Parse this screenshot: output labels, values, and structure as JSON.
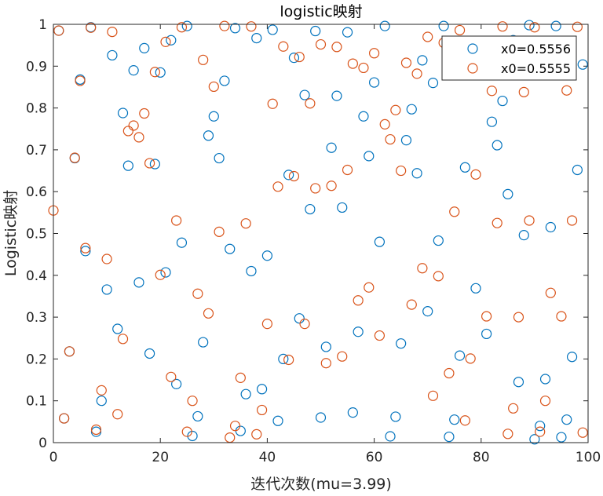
{
  "chart_data": {
    "type": "scatter",
    "title": "logistic映射",
    "xlabel": "迭代次数(mu=3.99)",
    "ylabel": "Logistic映射",
    "xlim": [
      0,
      100
    ],
    "ylim": [
      0,
      1
    ],
    "xticks": [
      "0",
      "20",
      "40",
      "60",
      "80",
      "100"
    ],
    "yticks": [
      "0",
      "0.1",
      "0.2",
      "0.3",
      "0.4",
      "0.5",
      "0.6",
      "0.7",
      "0.8",
      "0.9",
      "1"
    ],
    "legend_position": "top-right",
    "series": [
      {
        "name": "x0=0.5556",
        "color": "#0072BD",
        "points": [
          [
            1,
            0.985
          ],
          [
            2,
            0.058
          ],
          [
            3,
            0.218
          ],
          [
            4,
            0.68
          ],
          [
            5,
            0.868
          ],
          [
            6,
            0.458
          ],
          [
            7,
            0.993
          ],
          [
            8,
            0.026
          ],
          [
            9,
            0.1
          ],
          [
            10,
            0.366
          ],
          [
            11,
            0.926
          ],
          [
            12,
            0.272
          ],
          [
            13,
            0.788
          ],
          [
            14,
            0.662
          ],
          [
            15,
            0.89
          ],
          [
            16,
            0.383
          ],
          [
            17,
            0.943
          ],
          [
            18,
            0.213
          ],
          [
            19,
            0.666
          ],
          [
            20,
            0.885
          ],
          [
            21,
            0.407
          ],
          [
            22,
            0.962
          ],
          [
            23,
            0.14
          ],
          [
            24,
            0.478
          ],
          [
            25,
            0.996
          ],
          [
            26,
            0.016
          ],
          [
            27,
            0.063
          ],
          [
            28,
            0.24
          ],
          [
            29,
            0.734
          ],
          [
            30,
            0.78
          ],
          [
            31,
            0.68
          ],
          [
            32,
            0.865
          ],
          [
            33,
            0.463
          ],
          [
            34,
            0.991
          ],
          [
            35,
            0.028
          ],
          [
            36,
            0.116
          ],
          [
            37,
            0.41
          ],
          [
            38,
            0.967
          ],
          [
            39,
            0.128
          ],
          [
            40,
            0.447
          ],
          [
            41,
            0.987
          ],
          [
            42,
            0.052
          ],
          [
            43,
            0.2
          ],
          [
            44,
            0.64
          ],
          [
            45,
            0.92
          ],
          [
            46,
            0.297
          ],
          [
            47,
            0.831
          ],
          [
            48,
            0.558
          ],
          [
            49,
            0.984
          ],
          [
            50,
            0.06
          ],
          [
            51,
            0.229
          ],
          [
            52,
            0.705
          ],
          [
            53,
            0.829
          ],
          [
            54,
            0.562
          ],
          [
            55,
            0.981
          ],
          [
            56,
            0.072
          ],
          [
            57,
            0.265
          ],
          [
            58,
            0.78
          ],
          [
            59,
            0.685
          ],
          [
            60,
            0.861
          ],
          [
            61,
            0.48
          ],
          [
            62,
            0.996
          ],
          [
            63,
            0.015
          ],
          [
            64,
            0.062
          ],
          [
            65,
            0.237
          ],
          [
            66,
            0.723
          ],
          [
            67,
            0.797
          ],
          [
            68,
            0.644
          ],
          [
            69,
            0.914
          ],
          [
            70,
            0.314
          ],
          [
            71,
            0.86
          ],
          [
            72,
            0.483
          ],
          [
            73,
            0.996
          ],
          [
            74,
            0.014
          ],
          [
            75,
            0.055
          ],
          [
            76,
            0.208
          ],
          [
            77,
            0.658
          ],
          [
            78,
            0.898
          ],
          [
            79,
            0.369
          ],
          [
            80,
            0.929
          ],
          [
            81,
            0.26
          ],
          [
            82,
            0.767
          ],
          [
            83,
            0.711
          ],
          [
            84,
            0.817
          ],
          [
            85,
            0.594
          ],
          [
            86,
            0.962
          ],
          [
            87,
            0.145
          ],
          [
            88,
            0.496
          ],
          [
            89,
            0.998
          ],
          [
            90,
            0.008
          ],
          [
            91,
            0.04
          ],
          [
            92,
            0.152
          ],
          [
            93,
            0.515
          ],
          [
            94,
            0.996
          ],
          [
            95,
            0.013
          ],
          [
            96,
            0.055
          ],
          [
            97,
            0.205
          ],
          [
            98,
            0.652
          ],
          [
            99,
            0.904
          ]
        ]
      },
      {
        "name": "x0=0.5555",
        "color": "#D95319",
        "points": [
          [
            0,
            0.555
          ],
          [
            1,
            0.985
          ],
          [
            2,
            0.058
          ],
          [
            3,
            0.218
          ],
          [
            4,
            0.681
          ],
          [
            5,
            0.865
          ],
          [
            6,
            0.465
          ],
          [
            7,
            0.992
          ],
          [
            8,
            0.031
          ],
          [
            9,
            0.125
          ],
          [
            10,
            0.439
          ],
          [
            11,
            0.982
          ],
          [
            12,
            0.068
          ],
          [
            13,
            0.248
          ],
          [
            14,
            0.745
          ],
          [
            15,
            0.758
          ],
          [
            16,
            0.73
          ],
          [
            17,
            0.787
          ],
          [
            18,
            0.668
          ],
          [
            19,
            0.886
          ],
          [
            20,
            0.401
          ],
          [
            21,
            0.958
          ],
          [
            22,
            0.157
          ],
          [
            23,
            0.531
          ],
          [
            24,
            0.993
          ],
          [
            25,
            0.026
          ],
          [
            26,
            0.1
          ],
          [
            27,
            0.356
          ],
          [
            28,
            0.915
          ],
          [
            29,
            0.309
          ],
          [
            30,
            0.851
          ],
          [
            31,
            0.504
          ],
          [
            32,
            0.996
          ],
          [
            33,
            0.012
          ],
          [
            34,
            0.04
          ],
          [
            35,
            0.155
          ],
          [
            36,
            0.524
          ],
          [
            37,
            0.995
          ],
          [
            38,
            0.02
          ],
          [
            39,
            0.078
          ],
          [
            40,
            0.284
          ],
          [
            41,
            0.81
          ],
          [
            42,
            0.612
          ],
          [
            43,
            0.947
          ],
          [
            44,
            0.198
          ],
          [
            45,
            0.637
          ],
          [
            46,
            0.922
          ],
          [
            47,
            0.284
          ],
          [
            48,
            0.811
          ],
          [
            49,
            0.608
          ],
          [
            50,
            0.952
          ],
          [
            51,
            0.19
          ],
          [
            52,
            0.614
          ],
          [
            53,
            0.946
          ],
          [
            54,
            0.206
          ],
          [
            55,
            0.652
          ],
          [
            56,
            0.906
          ],
          [
            57,
            0.34
          ],
          [
            58,
            0.896
          ],
          [
            59,
            0.371
          ],
          [
            60,
            0.931
          ],
          [
            61,
            0.256
          ],
          [
            62,
            0.761
          ],
          [
            63,
            0.725
          ],
          [
            64,
            0.795
          ],
          [
            65,
            0.65
          ],
          [
            66,
            0.908
          ],
          [
            67,
            0.33
          ],
          [
            68,
            0.882
          ],
          [
            69,
            0.417
          ],
          [
            70,
            0.97
          ],
          [
            71,
            0.112
          ],
          [
            72,
            0.398
          ],
          [
            73,
            0.956
          ],
          [
            74,
            0.166
          ],
          [
            75,
            0.552
          ],
          [
            76,
            0.986
          ],
          [
            77,
            0.053
          ],
          [
            78,
            0.201
          ],
          [
            79,
            0.641
          ],
          [
            80,
            0.918
          ],
          [
            81,
            0.302
          ],
          [
            82,
            0.841
          ],
          [
            83,
            0.525
          ],
          [
            84,
            0.995
          ],
          [
            85,
            0.021
          ],
          [
            86,
            0.082
          ],
          [
            87,
            0.3
          ],
          [
            88,
            0.838
          ],
          [
            89,
            0.531
          ],
          [
            90,
            0.993
          ],
          [
            91,
            0.026
          ],
          [
            92,
            0.1
          ],
          [
            93,
            0.358
          ],
          [
            94,
            0.917
          ],
          [
            95,
            0.302
          ],
          [
            96,
            0.842
          ],
          [
            97,
            0.531
          ],
          [
            98,
            0.994
          ],
          [
            99,
            0.024
          ]
        ]
      }
    ]
  }
}
